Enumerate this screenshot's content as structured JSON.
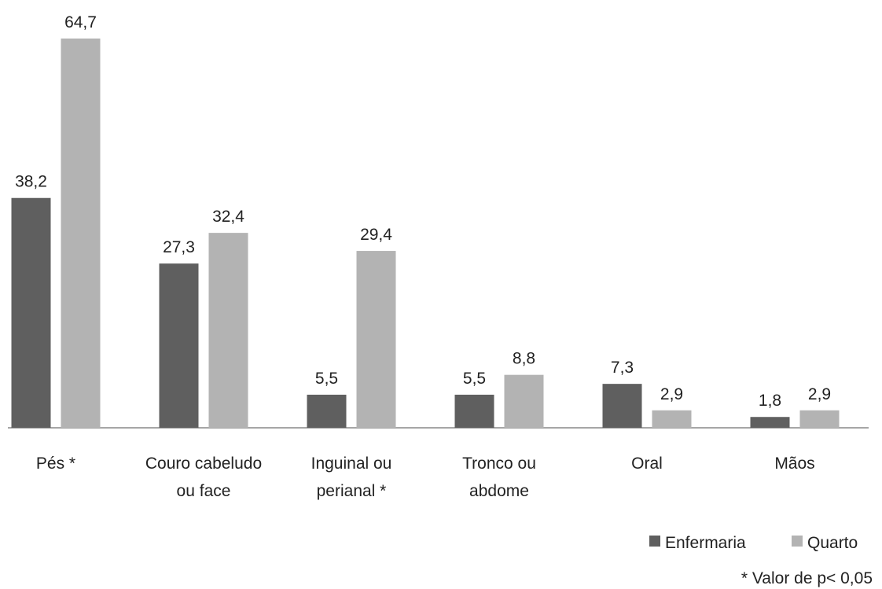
{
  "chart_data": {
    "type": "bar",
    "categories": [
      "Pés *",
      "Couro cabeludo ou face",
      "Inguinal ou perianal *",
      "Tronco ou abdome",
      "Oral",
      "Mãos"
    ],
    "series": [
      {
        "name": "Enfermaria",
        "color": "#5f5f5f",
        "values": [
          38.2,
          27.3,
          5.5,
          5.5,
          7.3,
          1.8
        ],
        "value_labels": [
          "38,2",
          "27,3",
          "5,5",
          "5,5",
          "7,3",
          "1,8"
        ]
      },
      {
        "name": "Quarto",
        "color": "#b3b3b3",
        "values": [
          64.7,
          32.4,
          29.4,
          8.8,
          2.9,
          2.9
        ],
        "value_labels": [
          "64,7",
          "32,4",
          "29,4",
          "8,8",
          "2,9",
          "2,9"
        ]
      }
    ],
    "legend": "bottom-right",
    "note": "* Valor de p< 0,05"
  }
}
